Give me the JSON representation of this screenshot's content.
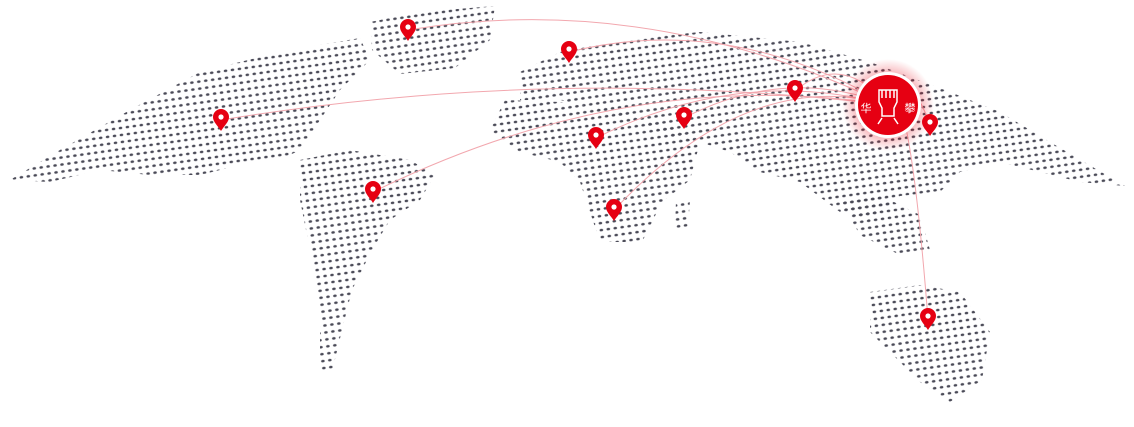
{
  "map": {
    "dot_color": "#4a4a57",
    "accent_color": "#e60012",
    "arc_color": "#f2a7ae",
    "hub": {
      "name": "headquarters",
      "logo_text": [
        "华",
        "攀"
      ]
    },
    "pins": [
      {
        "id": "greenland"
      },
      {
        "id": "europe"
      },
      {
        "id": "north-america"
      },
      {
        "id": "south-america"
      },
      {
        "id": "west-africa"
      },
      {
        "id": "middle-east"
      },
      {
        "id": "southern-africa"
      },
      {
        "id": "central-asia"
      },
      {
        "id": "east-asia"
      },
      {
        "id": "australia"
      }
    ]
  }
}
